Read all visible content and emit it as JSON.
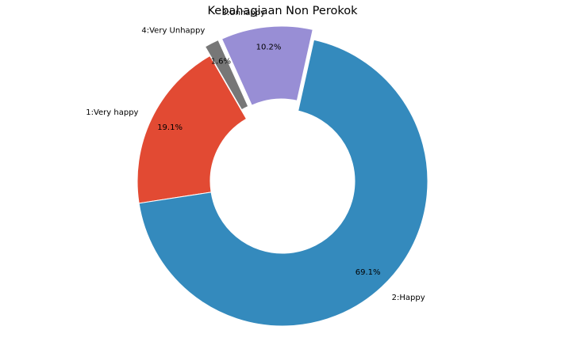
{
  "chart_data": {
    "type": "pie",
    "variant": "donut",
    "title": "Kebahagiaan Non Perokok",
    "slices": [
      {
        "label": "1:Very happy",
        "value": 19.1,
        "pct_label": "19.1%",
        "color": "#E24A33",
        "exploded": false
      },
      {
        "label": "2:Happy",
        "value": 69.1,
        "pct_label": "69.1%",
        "color": "#348ABD",
        "exploded": false
      },
      {
        "label": "3:Unhappy",
        "value": 10.2,
        "pct_label": "10.2%",
        "color": "#988ED5",
        "exploded": true
      },
      {
        "label": "4:Very Unhappy",
        "value": 1.6,
        "pct_label": "1.6%",
        "color": "#777777",
        "exploded": true
      }
    ],
    "start_angle_deg": 120,
    "direction": "counterclockwise",
    "legend": "none"
  }
}
